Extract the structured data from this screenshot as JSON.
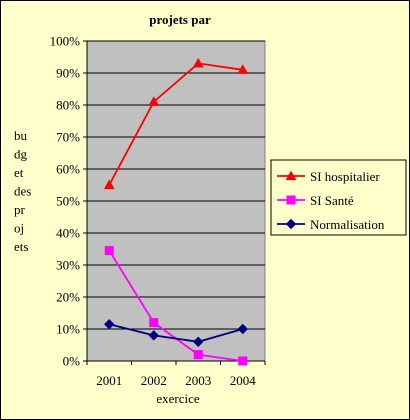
{
  "chart_data": {
    "type": "line",
    "title": "projets par",
    "xlabel": "exercice",
    "ylabel_lines": [
      "bu",
      "dg",
      "et",
      "des",
      "pr",
      "oj",
      "ets"
    ],
    "categories": [
      "2001",
      "2002",
      "2003",
      "2004"
    ],
    "ylim": [
      0,
      100
    ],
    "yticks": [
      "0%",
      "10%",
      "20%",
      "30%",
      "40%",
      "50%",
      "60%",
      "70%",
      "80%",
      "90%",
      "100%"
    ],
    "grid": true,
    "legend_position": "right",
    "series": [
      {
        "name": "SI hospitalier",
        "values": [
          55,
          81,
          93,
          91
        ],
        "color": "#ff0000",
        "marker": "triangle"
      },
      {
        "name": "SI Santé",
        "values": [
          34.5,
          12,
          2,
          0
        ],
        "color": "#ff00ff",
        "marker": "square"
      },
      {
        "name": "Normalisation",
        "values": [
          11.5,
          8,
          6,
          10
        ],
        "color": "#000080",
        "marker": "diamond"
      }
    ],
    "plot_background": "#c0c0c0",
    "page_background": "#ffffcc"
  }
}
